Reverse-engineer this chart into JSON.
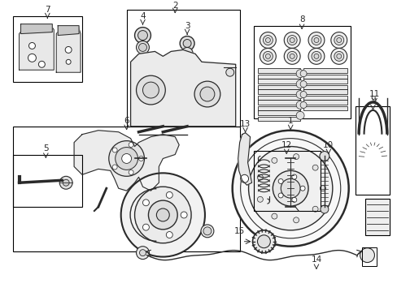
{
  "background_color": "#ffffff",
  "line_color": "#2a2a2a",
  "figure_width": 4.89,
  "figure_height": 3.6,
  "dpi": 100,
  "label_fontsize": 7.5
}
